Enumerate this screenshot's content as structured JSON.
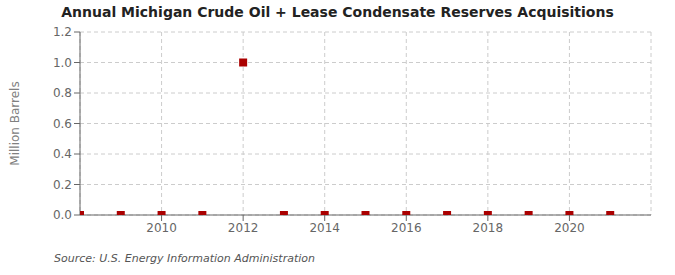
{
  "chart_data": {
    "type": "scatter",
    "title": "Annual Michigan Crude Oil + Lease Condensate Reserves Acquisitions",
    "y_label": "Million Barrels",
    "annotations": [
      "Source: U.S. Energy Information Administration"
    ],
    "x": [
      2008,
      2009,
      2010,
      2011,
      2012,
      2013,
      2014,
      2015,
      2016,
      2017,
      2018,
      2019,
      2020,
      2021
    ],
    "values": [
      0.0,
      0.0,
      0.0,
      0.0,
      1.0,
      0.0,
      0.0,
      0.0,
      0.0,
      0.0,
      0.0,
      0.0,
      0.0,
      0.0
    ],
    "color": "#aa0000",
    "marker": "square",
    "xlim": [
      2008.0,
      2022.0
    ],
    "ylim": [
      0.0,
      1.2
    ],
    "xticks": [
      2010,
      2012,
      2014,
      2016,
      2018,
      2020
    ],
    "yticks": [
      {
        "value": 0,
        "label": "0.0"
      },
      0.2,
      0.4,
      0.6,
      0.8,
      {
        "value": 1,
        "label": "1.0"
      },
      1.2
    ],
    "grid": true
  }
}
